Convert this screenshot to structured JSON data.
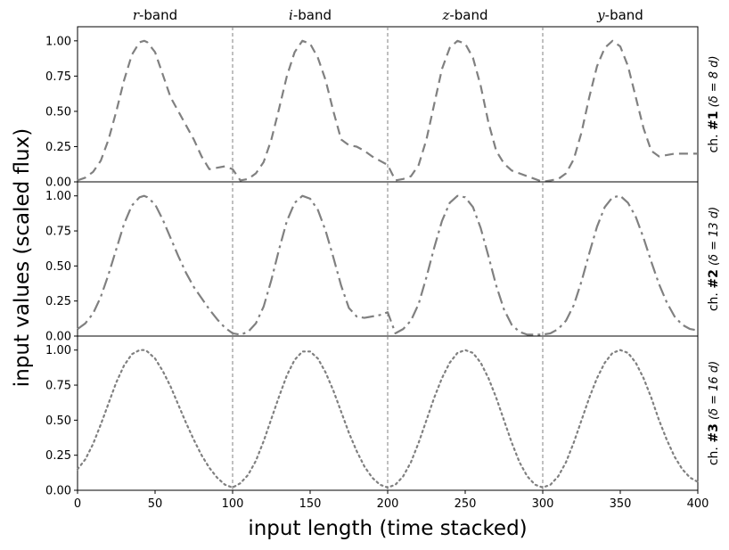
{
  "chart_data": {
    "type": "line",
    "xlabel": "input length (time stacked)",
    "ylabel": "input values (scaled flux)",
    "xlim": [
      0,
      400
    ],
    "ylim": [
      0,
      1.1
    ],
    "x_ticks": [
      "0",
      "50",
      "100",
      "150",
      "200",
      "250",
      "300",
      "350",
      "400"
    ],
    "x_tick_values": [
      0,
      50,
      100,
      150,
      200,
      250,
      300,
      350,
      400
    ],
    "y_ticks": [
      "0.00",
      "0.25",
      "0.50",
      "0.75",
      "1.00"
    ],
    "y_tick_values": [
      0,
      0.25,
      0.5,
      0.75,
      1.0
    ],
    "band_boundaries": [
      100,
      200,
      300
    ],
    "band_labels": [
      {
        "var": "r",
        "suffix": "-band"
      },
      {
        "var": "i",
        "suffix": "-band"
      },
      {
        "var": "z",
        "suffix": "-band"
      },
      {
        "var": "y",
        "suffix": "-band"
      }
    ],
    "line_color": "#808080",
    "panels": [
      {
        "label_prefix": "ch. ",
        "label_bold": "#1",
        "label_suffix": " (δ = 8 d)",
        "style": "dashed",
        "x": [
          0,
          5,
          10,
          15,
          20,
          25,
          30,
          35,
          40,
          43,
          45,
          50,
          55,
          60,
          65,
          70,
          75,
          80,
          85,
          90,
          95,
          100,
          105,
          110,
          115,
          120,
          125,
          130,
          135,
          140,
          145,
          150,
          155,
          160,
          165,
          170,
          175,
          180,
          185,
          190,
          195,
          200,
          205,
          210,
          215,
          220,
          225,
          230,
          235,
          240,
          245,
          250,
          255,
          260,
          265,
          270,
          275,
          280,
          285,
          290,
          295,
          300,
          305,
          310,
          315,
          320,
          325,
          330,
          335,
          340,
          345,
          350,
          355,
          360,
          365,
          370,
          375,
          380,
          385,
          390,
          395,
          400
        ],
        "values": [
          0.01,
          0.03,
          0.07,
          0.15,
          0.3,
          0.5,
          0.72,
          0.9,
          0.99,
          1.0,
          0.99,
          0.92,
          0.76,
          0.6,
          0.5,
          0.4,
          0.3,
          0.18,
          0.09,
          0.1,
          0.11,
          0.09,
          0.01,
          0.02,
          0.06,
          0.14,
          0.3,
          0.52,
          0.75,
          0.92,
          1.0,
          0.98,
          0.88,
          0.72,
          0.5,
          0.3,
          0.26,
          0.25,
          0.22,
          0.18,
          0.15,
          0.12,
          0.01,
          0.02,
          0.04,
          0.12,
          0.3,
          0.55,
          0.8,
          0.95,
          1.0,
          0.98,
          0.88,
          0.68,
          0.42,
          0.22,
          0.13,
          0.08,
          0.06,
          0.04,
          0.02,
          0.0,
          0.01,
          0.02,
          0.06,
          0.16,
          0.35,
          0.6,
          0.82,
          0.95,
          1.0,
          0.96,
          0.82,
          0.6,
          0.38,
          0.22,
          0.18,
          0.19,
          0.2,
          0.2,
          0.2,
          0.2
        ]
      },
      {
        "label_prefix": "ch. ",
        "label_bold": "#2",
        "label_suffix": " (δ = 13 d)",
        "style": "dashdot",
        "x": [
          0,
          5,
          10,
          15,
          20,
          25,
          30,
          35,
          40,
          43,
          45,
          50,
          55,
          60,
          65,
          70,
          75,
          80,
          85,
          90,
          95,
          100,
          105,
          110,
          115,
          120,
          125,
          130,
          135,
          140,
          145,
          150,
          155,
          160,
          165,
          170,
          175,
          180,
          185,
          190,
          195,
          200,
          205,
          210,
          215,
          220,
          225,
          230,
          235,
          240,
          245,
          250,
          255,
          260,
          265,
          270,
          275,
          280,
          285,
          290,
          295,
          300,
          305,
          310,
          315,
          320,
          325,
          330,
          335,
          340,
          345,
          350,
          355,
          360,
          365,
          370,
          375,
          380,
          385,
          390,
          395,
          400
        ],
        "values": [
          0.05,
          0.09,
          0.16,
          0.28,
          0.44,
          0.62,
          0.8,
          0.93,
          0.99,
          1.0,
          0.99,
          0.94,
          0.83,
          0.7,
          0.57,
          0.45,
          0.35,
          0.27,
          0.19,
          0.12,
          0.06,
          0.02,
          0.01,
          0.03,
          0.09,
          0.21,
          0.4,
          0.62,
          0.82,
          0.95,
          1.0,
          0.98,
          0.9,
          0.75,
          0.56,
          0.36,
          0.2,
          0.14,
          0.13,
          0.14,
          0.15,
          0.17,
          0.02,
          0.05,
          0.11,
          0.23,
          0.42,
          0.63,
          0.82,
          0.95,
          1.0,
          0.99,
          0.92,
          0.77,
          0.57,
          0.36,
          0.19,
          0.08,
          0.03,
          0.01,
          0.01,
          0.01,
          0.02,
          0.05,
          0.11,
          0.22,
          0.39,
          0.59,
          0.78,
          0.92,
          0.99,
          1.0,
          0.95,
          0.85,
          0.7,
          0.53,
          0.37,
          0.24,
          0.14,
          0.08,
          0.05,
          0.04
        ]
      },
      {
        "label_prefix": "ch. ",
        "label_bold": "#3",
        "label_suffix": " (δ = 16 d)",
        "style": "dotted",
        "x": [
          0,
          5,
          10,
          15,
          20,
          25,
          30,
          35,
          40,
          43,
          45,
          50,
          55,
          60,
          65,
          70,
          75,
          80,
          85,
          90,
          95,
          100,
          105,
          110,
          115,
          120,
          125,
          130,
          135,
          140,
          145,
          150,
          155,
          160,
          165,
          170,
          175,
          180,
          185,
          190,
          195,
          200,
          205,
          210,
          215,
          220,
          225,
          230,
          235,
          240,
          245,
          250,
          255,
          260,
          265,
          270,
          275,
          280,
          285,
          290,
          295,
          300,
          305,
          310,
          315,
          320,
          325,
          330,
          335,
          340,
          345,
          350,
          355,
          360,
          365,
          370,
          375,
          380,
          385,
          390,
          395,
          400
        ],
        "values": [
          0.15,
          0.22,
          0.33,
          0.47,
          0.62,
          0.77,
          0.89,
          0.97,
          1.0,
          1.0,
          0.99,
          0.94,
          0.85,
          0.74,
          0.61,
          0.48,
          0.36,
          0.25,
          0.16,
          0.09,
          0.04,
          0.02,
          0.05,
          0.11,
          0.21,
          0.35,
          0.51,
          0.67,
          0.82,
          0.93,
          0.99,
          0.99,
          0.94,
          0.84,
          0.71,
          0.56,
          0.41,
          0.28,
          0.17,
          0.09,
          0.04,
          0.02,
          0.04,
          0.1,
          0.2,
          0.34,
          0.5,
          0.66,
          0.8,
          0.91,
          0.98,
          1.0,
          0.98,
          0.91,
          0.8,
          0.66,
          0.5,
          0.34,
          0.2,
          0.1,
          0.04,
          0.02,
          0.04,
          0.1,
          0.2,
          0.34,
          0.5,
          0.66,
          0.8,
          0.91,
          0.98,
          1.0,
          0.98,
          0.91,
          0.8,
          0.66,
          0.5,
          0.36,
          0.24,
          0.15,
          0.09,
          0.06
        ]
      }
    ]
  }
}
